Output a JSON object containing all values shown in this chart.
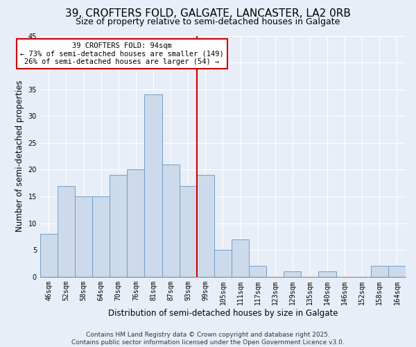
{
  "title": "39, CROFTERS FOLD, GALGATE, LANCASTER, LA2 0RB",
  "subtitle": "Size of property relative to semi-detached houses in Galgate",
  "xlabel": "Distribution of semi-detached houses by size in Galgate",
  "ylabel": "Number of semi-detached properties",
  "bar_labels": [
    "46sqm",
    "52sqm",
    "58sqm",
    "64sqm",
    "70sqm",
    "76sqm",
    "81sqm",
    "87sqm",
    "93sqm",
    "99sqm",
    "105sqm",
    "111sqm",
    "117sqm",
    "123sqm",
    "129sqm",
    "135sqm",
    "140sqm",
    "146sqm",
    "152sqm",
    "158sqm",
    "164sqm"
  ],
  "bar_values": [
    8,
    17,
    15,
    15,
    19,
    20,
    34,
    21,
    17,
    19,
    5,
    7,
    2,
    0,
    1,
    0,
    1,
    0,
    0,
    2,
    2
  ],
  "bar_color": "#ccdaeb",
  "bar_edge_color": "#6fa0c8",
  "vline_x": 8.5,
  "vline_color": "#cc0000",
  "annotation_title": "39 CROFTERS FOLD: 94sqm",
  "annotation_line1": "← 73% of semi-detached houses are smaller (149)",
  "annotation_line2": "26% of semi-detached houses are larger (54) →",
  "annotation_box_color": "#ffffff",
  "annotation_box_edge": "#cc0000",
  "ylim": [
    0,
    45
  ],
  "yticks": [
    0,
    5,
    10,
    15,
    20,
    25,
    30,
    35,
    40,
    45
  ],
  "footer_line1": "Contains HM Land Registry data © Crown copyright and database right 2025.",
  "footer_line2": "Contains public sector information licensed under the Open Government Licence v3.0.",
  "bg_color": "#e8eef8",
  "grid_color": "#c0c8d8",
  "title_fontsize": 11,
  "subtitle_fontsize": 9,
  "axis_label_fontsize": 8.5,
  "tick_fontsize": 7,
  "footer_fontsize": 6.5
}
